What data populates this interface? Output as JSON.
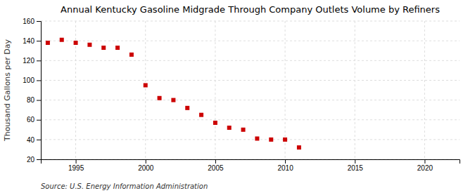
{
  "chart_data": {
    "type": "scatter",
    "title": "Annual Kentucky Gasoline Midgrade Through Company Outlets Volume by Refiners",
    "ylabel": "Thousand Gallons per Day",
    "source": "Source: U.S. Energy Information Administration",
    "x": [
      1993,
      1994,
      1995,
      1996,
      1997,
      1998,
      1999,
      2000,
      2001,
      2002,
      2003,
      2004,
      2005,
      2006,
      2007,
      2008,
      2009,
      2010,
      2011
    ],
    "values": [
      138,
      141,
      138,
      136,
      133,
      133,
      126,
      95,
      82,
      80,
      72,
      65,
      57,
      52,
      50,
      41,
      40,
      40,
      32
    ],
    "color": "#cc0000",
    "marker": "square",
    "xlim": [
      1992.5,
      2022.5
    ],
    "xticks": [
      1995,
      2000,
      2005,
      2010,
      2015,
      2020
    ],
    "ylim": [
      20,
      160
    ],
    "yticks": [
      20,
      40,
      60,
      80,
      100,
      120,
      140,
      160
    ],
    "grid": true
  }
}
